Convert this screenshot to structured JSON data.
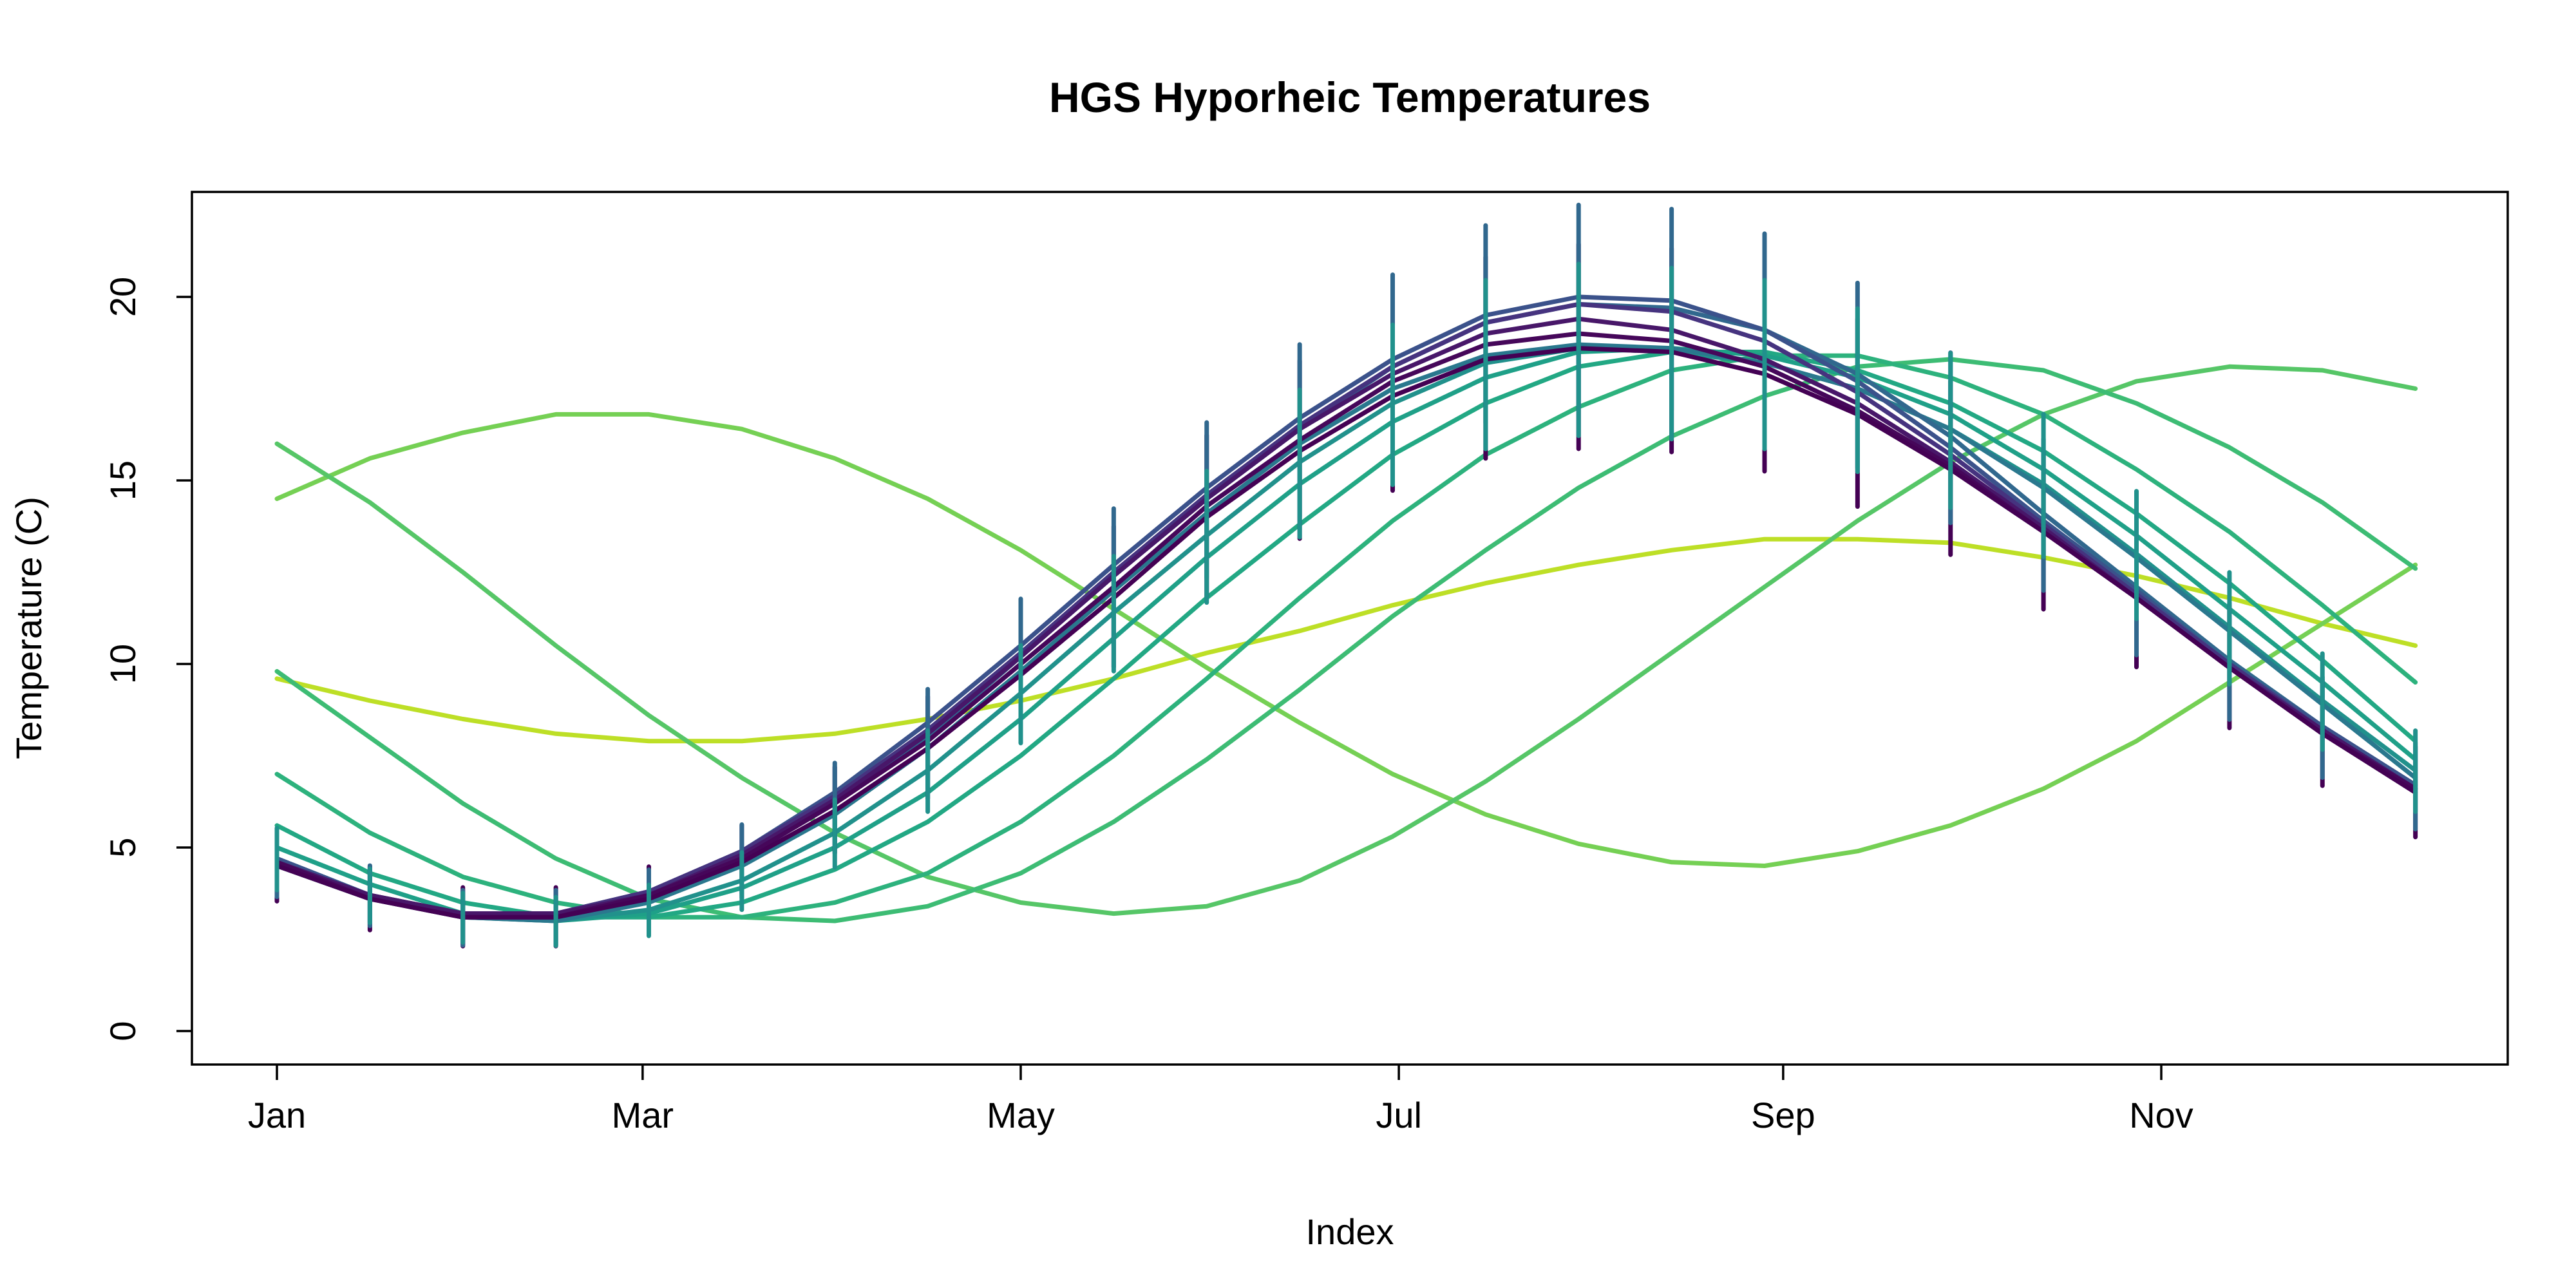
{
  "chart_data": {
    "type": "line",
    "title": "HGS Hyporheic Temperatures",
    "xlabel": "Index",
    "ylabel": "Temperature (C)",
    "xlim": [
      0,
      365
    ],
    "ylim": [
      0,
      22
    ],
    "x_ticks": [
      {
        "label": "Jan",
        "day": 0
      },
      {
        "label": "Mar",
        "day": 59
      },
      {
        "label": "May",
        "day": 120
      },
      {
        "label": "Jul",
        "day": 181
      },
      {
        "label": "Sep",
        "day": 243
      },
      {
        "label": "Nov",
        "day": 304
      }
    ],
    "y_ticks": [
      0,
      5,
      10,
      15,
      20
    ],
    "grid": false,
    "legend": "none",
    "x": [
      0,
      15,
      30,
      45,
      60,
      75,
      90,
      105,
      120,
      135,
      150,
      165,
      180,
      195,
      210,
      225,
      240,
      255,
      270,
      285,
      300,
      315,
      330,
      345
    ],
    "series": [
      {
        "color": "#440154",
        "values": [
          4.5,
          3.6,
          3.1,
          3.1,
          3.6,
          4.6,
          6.0,
          7.7,
          9.7,
          11.8,
          14.0,
          15.8,
          17.3,
          18.3,
          18.6,
          18.5,
          17.9,
          16.8,
          15.3,
          13.6,
          11.8,
          9.9,
          8.1,
          6.5
        ]
      },
      {
        "color": "#46075a",
        "values": [
          4.6,
          3.6,
          3.1,
          3.1,
          3.7,
          4.7,
          6.2,
          7.9,
          10.0,
          12.1,
          14.3,
          16.1,
          17.7,
          18.7,
          19.0,
          18.8,
          18.1,
          16.9,
          15.4,
          13.6,
          11.8,
          9.9,
          8.1,
          6.6
        ]
      },
      {
        "color": "#481769",
        "values": [
          4.6,
          3.7,
          3.2,
          3.2,
          3.7,
          4.8,
          6.3,
          8.1,
          10.2,
          12.4,
          14.5,
          16.4,
          17.9,
          19.0,
          19.4,
          19.1,
          18.3,
          17.1,
          15.5,
          13.7,
          11.8,
          9.9,
          8.2,
          6.6
        ]
      },
      {
        "color": "#46337f",
        "values": [
          4.6,
          3.7,
          3.2,
          3.2,
          3.8,
          4.9,
          6.4,
          8.2,
          10.3,
          12.5,
          14.6,
          16.5,
          18.1,
          19.3,
          19.8,
          19.6,
          18.8,
          17.4,
          15.7,
          13.8,
          11.9,
          10.0,
          8.2,
          6.6
        ]
      },
      {
        "color": "#3b528b",
        "values": [
          4.7,
          3.7,
          3.2,
          3.2,
          3.8,
          4.9,
          6.5,
          8.4,
          10.5,
          12.7,
          14.8,
          16.7,
          18.3,
          19.5,
          20.0,
          19.9,
          19.1,
          17.7,
          15.9,
          13.9,
          12.0,
          10.0,
          8.3,
          6.7
        ]
      },
      {
        "color": "#31688e",
        "values": [
          4.6,
          3.7,
          3.1,
          3.1,
          3.6,
          4.7,
          6.2,
          8.0,
          10.2,
          12.4,
          14.5,
          16.4,
          18.1,
          19.3,
          19.8,
          19.7,
          19.1,
          17.9,
          16.2,
          14.1,
          12.1,
          10.1,
          8.3,
          6.7
        ]
      },
      {
        "color": "#2a788e",
        "values": [
          4.5,
          3.6,
          3.1,
          3.0,
          3.5,
          4.5,
          5.9,
          7.7,
          9.8,
          12.0,
          14.1,
          16.0,
          17.5,
          18.4,
          18.7,
          18.6,
          18.2,
          17.5,
          16.4,
          14.8,
          12.9,
          10.9,
          8.9,
          6.9
        ]
      },
      {
        "color": "#21918c",
        "values": [
          4.7,
          3.7,
          3.1,
          3.0,
          3.3,
          4.1,
          5.4,
          7.1,
          9.2,
          11.4,
          13.5,
          15.5,
          17.1,
          18.2,
          18.6,
          18.5,
          18.2,
          17.5,
          16.4,
          14.9,
          13.0,
          11.0,
          9.0,
          7.1
        ]
      },
      {
        "color": "#1fa088",
        "values": [
          5.0,
          4.0,
          3.2,
          3.0,
          3.2,
          3.9,
          5.0,
          6.5,
          8.5,
          10.7,
          12.9,
          14.9,
          16.6,
          17.8,
          18.5,
          18.6,
          18.4,
          17.8,
          16.8,
          15.3,
          13.5,
          11.5,
          9.5,
          7.4
        ]
      },
      {
        "color": "#22a884",
        "values": [
          5.6,
          4.3,
          3.5,
          3.1,
          3.1,
          3.5,
          4.4,
          5.7,
          7.5,
          9.6,
          11.8,
          13.8,
          15.7,
          17.1,
          18.1,
          18.5,
          18.5,
          18.0,
          17.1,
          15.8,
          14.1,
          12.2,
          10.1,
          7.9
        ]
      },
      {
        "color": "#2db27d",
        "values": [
          7.0,
          5.4,
          4.2,
          3.5,
          3.1,
          3.1,
          3.5,
          4.3,
          5.7,
          7.5,
          9.6,
          11.8,
          13.9,
          15.7,
          17.0,
          18.0,
          18.4,
          18.4,
          17.8,
          16.8,
          15.3,
          13.6,
          11.6,
          9.5
        ]
      },
      {
        "color": "#3dbc74",
        "values": [
          9.8,
          8.0,
          6.2,
          4.7,
          3.6,
          3.1,
          3.0,
          3.4,
          4.3,
          5.7,
          7.4,
          9.3,
          11.3,
          13.1,
          14.8,
          16.2,
          17.3,
          18.1,
          18.3,
          18.0,
          17.1,
          15.9,
          14.4,
          12.6
        ]
      },
      {
        "color": "#56c667",
        "values": [
          16.0,
          14.4,
          12.5,
          10.5,
          8.6,
          6.9,
          5.4,
          4.2,
          3.5,
          3.2,
          3.4,
          4.1,
          5.3,
          6.8,
          8.5,
          10.3,
          12.1,
          13.9,
          15.5,
          16.8,
          17.7,
          18.1,
          18.0,
          17.5
        ]
      },
      {
        "color": "#75d054",
        "values": [
          14.5,
          15.6,
          16.3,
          16.8,
          16.8,
          16.4,
          15.6,
          14.5,
          13.1,
          11.5,
          9.9,
          8.4,
          7.0,
          5.9,
          5.1,
          4.6,
          4.5,
          4.9,
          5.6,
          6.6,
          7.9,
          9.5,
          11.1,
          12.7
        ]
      },
      {
        "color": "#bddf26",
        "values": [
          9.6,
          9.0,
          8.5,
          8.1,
          7.9,
          7.9,
          8.1,
          8.5,
          9.0,
          9.6,
          10.3,
          10.9,
          11.6,
          12.2,
          12.7,
          13.1,
          13.4,
          13.4,
          13.3,
          12.9,
          12.4,
          11.8,
          11.1,
          10.5
        ]
      }
    ],
    "spike_series": [
      {
        "color": "#440154",
        "range": [
          -0.55,
          0.6
        ]
      },
      {
        "color": "#31688e",
        "range": [
          -0.5,
          0.45
        ]
      },
      {
        "color": "#21918c",
        "range": [
          -0.35,
          0.3
        ]
      }
    ]
  }
}
